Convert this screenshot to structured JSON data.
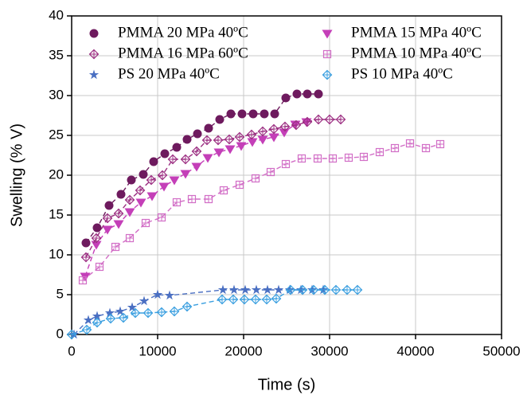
{
  "chart_data": {
    "type": "scatter",
    "xlabel": "Time (s)",
    "ylabel": "Swelling (% V)",
    "xlim": [
      0,
      50000
    ],
    "ylim": [
      0,
      40
    ],
    "xticks": [
      0,
      10000,
      20000,
      30000,
      40000,
      50000
    ],
    "yticks": [
      0,
      5,
      10,
      15,
      20,
      25,
      30,
      35,
      40
    ],
    "grid": true,
    "legend": "upper left",
    "series": [
      {
        "name": "PMMA 20 MPa 40ºC",
        "color": "#6e1a5e",
        "marker": "circle",
        "x": [
          1667,
          2963,
          4352,
          5741,
          6944,
          8333,
          9537,
          10833,
          12222,
          13426,
          14630,
          15926,
          17222,
          18519,
          19815,
          21111,
          22407,
          23611,
          24907,
          26204,
          27407,
          28704
        ],
        "values": [
          11.5,
          13.4,
          16.2,
          17.6,
          19.4,
          20.1,
          21.7,
          22.7,
          23.5,
          24.5,
          25.2,
          25.9,
          27.0,
          27.7,
          27.7,
          27.7,
          27.7,
          27.7,
          29.7,
          30.2,
          30.2,
          30.2
        ]
      },
      {
        "name": "PMMA 15 MPa 40ºC",
        "color": "#c43fb8",
        "marker": "triangle-down",
        "x": [
          1574,
          2870,
          4167,
          5463,
          6759,
          8056,
          9352,
          10741,
          11944,
          13241,
          14537,
          15833,
          17130,
          18426,
          19722,
          21019,
          22222,
          23519,
          24722,
          26019,
          27315
        ],
        "values": [
          7.3,
          11.3,
          13.2,
          13.9,
          15.4,
          16.6,
          17.4,
          18.6,
          19.4,
          20.2,
          21.1,
          22.2,
          22.9,
          23.3,
          23.7,
          24.2,
          24.5,
          24.8,
          25.4,
          26.4,
          26.7
        ]
      },
      {
        "name": "PMMA 16 MPa 60ºC",
        "color": "#9c2f82",
        "marker": "diamond-plus",
        "x": [
          1667,
          2870,
          4167,
          5463,
          6759,
          7963,
          9259,
          10556,
          11759,
          13241,
          14537,
          15741,
          17037,
          18333,
          19537,
          20926,
          22222,
          23519,
          24815,
          26111,
          27407,
          28704,
          30000,
          31296
        ],
        "values": [
          9.7,
          12.1,
          14.6,
          15.2,
          16.9,
          18.1,
          19.4,
          20.0,
          22.0,
          22.0,
          23.0,
          24.4,
          24.4,
          24.5,
          24.8,
          25.1,
          25.5,
          25.8,
          26.1,
          26.3,
          26.7,
          27.0,
          27.0,
          27.0
        ]
      },
      {
        "name": "PMMA 10 MPa 40ºC",
        "color": "#d26ec6",
        "marker": "square-plus",
        "x": [
          1296,
          3241,
          5093,
          6759,
          8611,
          10463,
          12222,
          13981,
          15926,
          17685,
          19537,
          21389,
          23148,
          24907,
          26759,
          28611,
          30370,
          32222,
          33981,
          35833,
          37593,
          39352,
          41204,
          42870
        ],
        "values": [
          6.8,
          8.5,
          11.0,
          12.1,
          14.0,
          14.7,
          16.6,
          17.0,
          17.0,
          18.1,
          18.8,
          19.6,
          20.4,
          21.4,
          22.1,
          22.1,
          22.1,
          22.2,
          22.3,
          22.9,
          23.4,
          24.0,
          23.4,
          23.9
        ]
      },
      {
        "name": "PS 20 MPa 40ºC",
        "color": "#4a6fc2",
        "marker": "star",
        "x": [
          278,
          1944,
          2963,
          4444,
          5648,
          7037,
          8426,
          10000,
          11389,
          17593,
          18889,
          20185,
          21481,
          22778,
          24074,
          25370,
          26667,
          27963,
          29259
        ],
        "values": [
          0,
          1.8,
          2.3,
          2.7,
          2.9,
          3.4,
          4.2,
          5.0,
          4.9,
          5.6,
          5.6,
          5.6,
          5.6,
          5.6,
          5.6,
          5.6,
          5.6,
          5.6,
          5.6
        ]
      },
      {
        "name": "PS 10 MPa 40ºC",
        "color": "#3a9fe0",
        "marker": "diamond-plus",
        "x": [
          0,
          1759,
          2963,
          4537,
          6019,
          7407,
          8889,
          10463,
          11944,
          13426,
          17500,
          18796,
          20093,
          21389,
          22685,
          23796,
          25463,
          26852,
          28148,
          29444,
          30741,
          32037,
          33241
        ],
        "values": [
          0,
          0.6,
          1.5,
          2.0,
          2.1,
          2.7,
          2.7,
          2.8,
          2.9,
          3.5,
          4.4,
          4.4,
          4.4,
          4.4,
          4.4,
          4.5,
          5.6,
          5.6,
          5.6,
          5.6,
          5.6,
          5.6,
          5.6
        ]
      }
    ]
  }
}
